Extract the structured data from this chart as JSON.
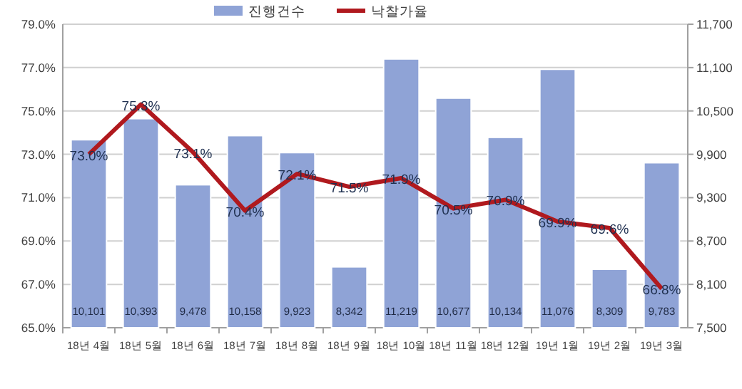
{
  "chart_data": {
    "type": "bar",
    "categories": [
      "18년 4월",
      "18년 5월",
      "18년 6월",
      "18년 7월",
      "18년 8월",
      "18년 9월",
      "18년 10월",
      "18년 11월",
      "18년 12월",
      "19년 1월",
      "19년 2월",
      "19년 3월"
    ],
    "series": [
      {
        "name": "진행건수",
        "axis": "y2",
        "color": "#8fa3d6",
        "values": [
          10101,
          10393,
          9478,
          10158,
          9923,
          8342,
          11219,
          10677,
          10134,
          11076,
          8309,
          9783
        ],
        "value_labels": [
          "10,101",
          "10,393",
          "9,478",
          "10,158",
          "9,923",
          "8,342",
          "11,219",
          "10,677",
          "10,134",
          "11,076",
          "8,309",
          "9,783"
        ]
      },
      {
        "name": "낙찰가율",
        "type": "line",
        "color": "#b0191e",
        "values": [
          73.0,
          75.3,
          73.1,
          70.4,
          72.1,
          71.5,
          71.9,
          70.5,
          70.9,
          69.9,
          69.6,
          66.8
        ],
        "value_labels": [
          "73.0%",
          "75.3%",
          "73.1%",
          "70.4%",
          "72.1%",
          "71.5%",
          "71.9%",
          "70.5%",
          "70.9%",
          "69.9%",
          "69.6%",
          "66.8%"
        ]
      }
    ],
    "ylim": [
      65,
      79
    ],
    "yticks": [
      {
        "value": 65,
        "label": "65.0%"
      },
      {
        "value": 67,
        "label": "67.0%"
      },
      {
        "value": 69,
        "label": "69.0%"
      },
      {
        "value": 71,
        "label": "71.0%"
      },
      {
        "value": 73,
        "label": "73.0%"
      },
      {
        "value": 75,
        "label": "75.0%"
      },
      {
        "value": 77,
        "label": "77.0%"
      },
      {
        "value": 79,
        "label": "79.0%"
      }
    ],
    "y2lim": [
      7500,
      11700
    ],
    "y2ticks": [
      {
        "value": 7500,
        "label": "7,500"
      },
      {
        "value": 8100,
        "label": "8,100"
      },
      {
        "value": 8700,
        "label": "8,700"
      },
      {
        "value": 9300,
        "label": "9,300"
      },
      {
        "value": 9900,
        "label": "9,900"
      },
      {
        "value": 10500,
        "label": "10,500"
      },
      {
        "value": 11100,
        "label": "11,100"
      },
      {
        "value": 11700,
        "label": "11,700"
      }
    ],
    "grid": "y",
    "legend": "top"
  }
}
